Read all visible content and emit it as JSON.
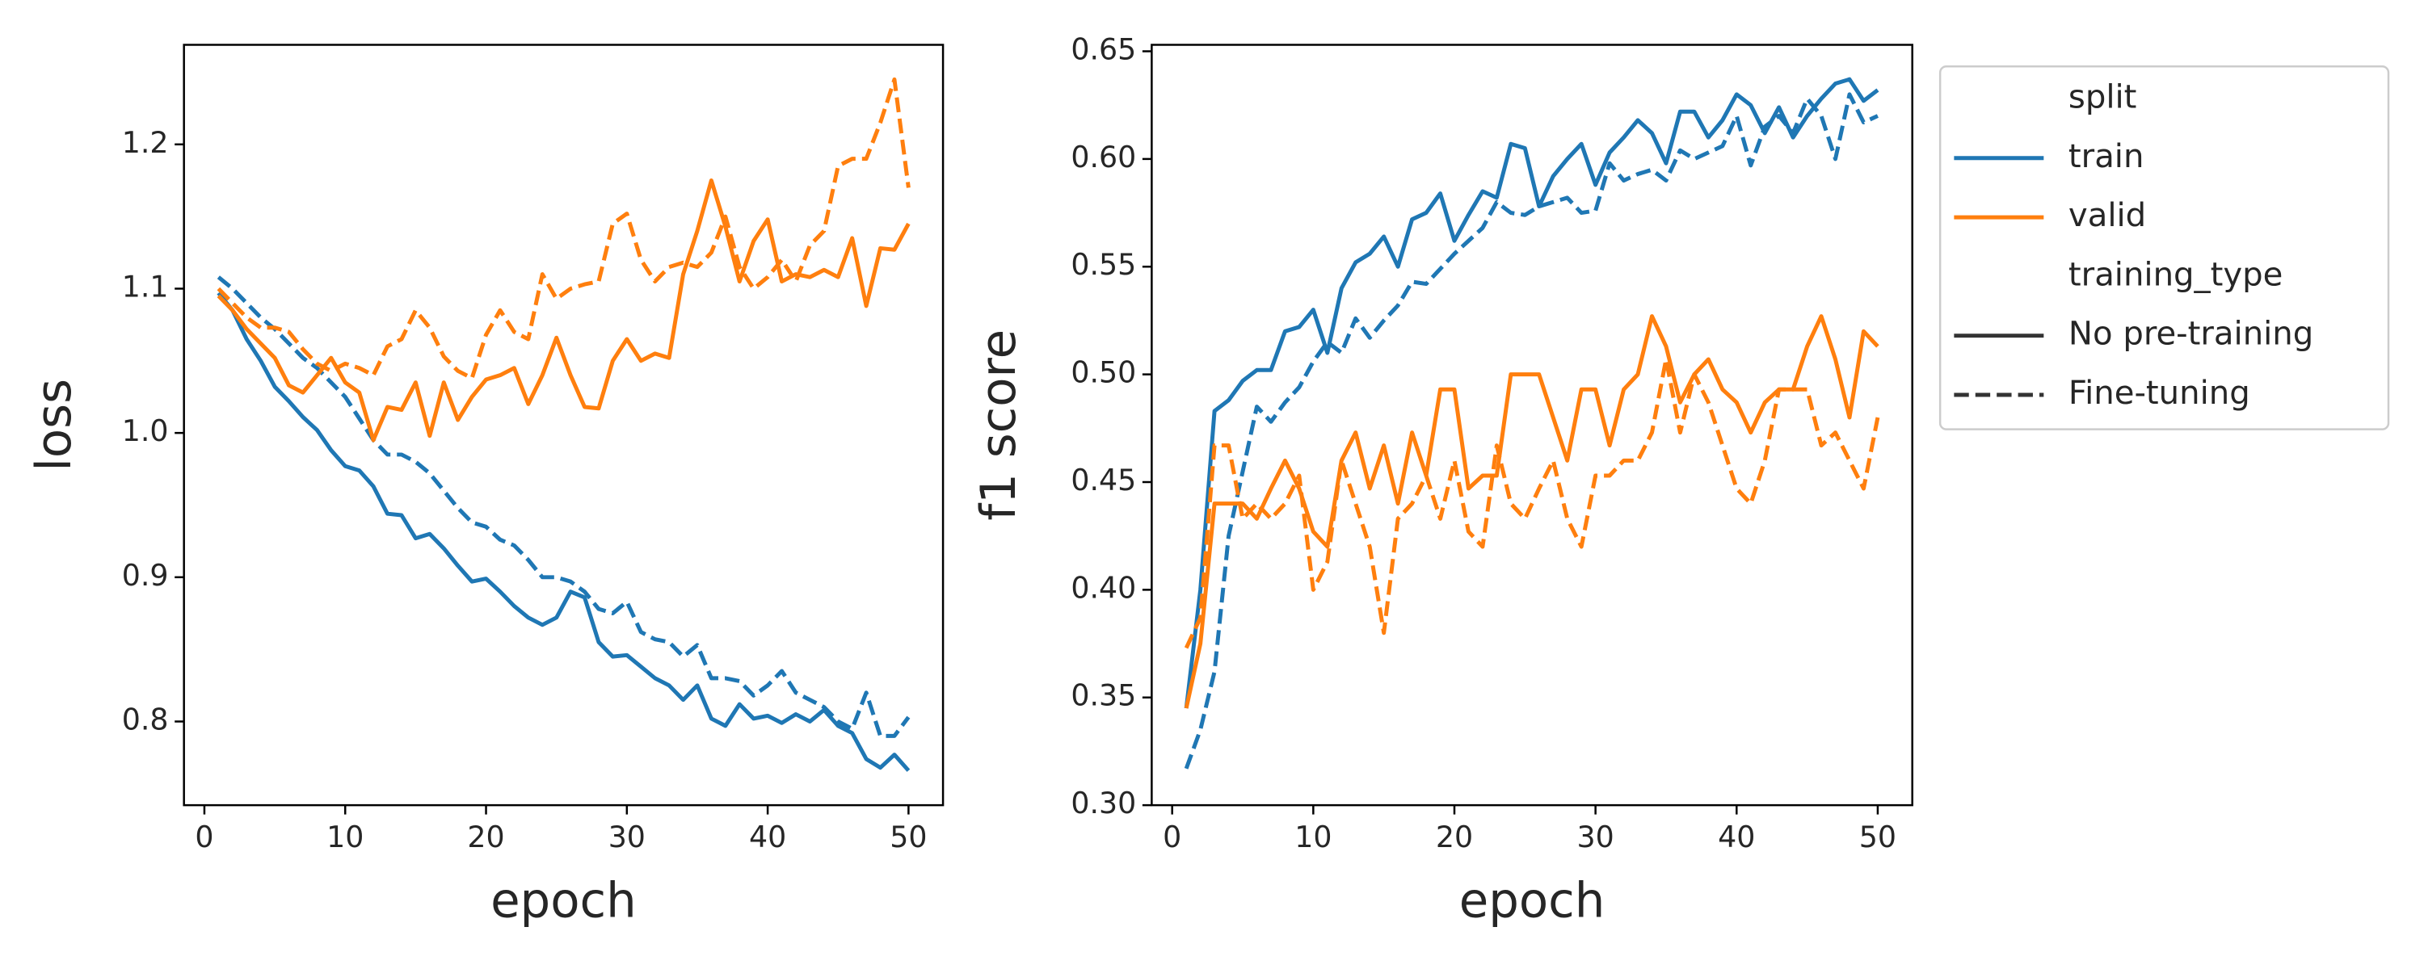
{
  "chart_data": [
    {
      "type": "line",
      "xlabel": "epoch",
      "ylabel": "loss",
      "x": [
        1,
        2,
        3,
        4,
        5,
        6,
        7,
        8,
        9,
        10,
        11,
        12,
        13,
        14,
        15,
        16,
        17,
        18,
        19,
        20,
        21,
        22,
        23,
        24,
        25,
        26,
        27,
        28,
        29,
        30,
        31,
        32,
        33,
        34,
        35,
        36,
        37,
        38,
        39,
        40,
        41,
        42,
        43,
        44,
        45,
        46,
        47,
        48,
        49,
        50
      ],
      "xlim": [
        -1.45,
        52.45
      ],
      "xticks": [
        0,
        10,
        20,
        30,
        40,
        50
      ],
      "ylim": [
        0.742,
        1.269
      ],
      "yticks": [
        0.8,
        0.9,
        {
          "value": 1.0,
          "label": "1.0"
        },
        1.1,
        1.2
      ],
      "series": [
        {
          "split": "train",
          "training_type": "No pre-training",
          "color": "#1f77b4",
          "dashed": false,
          "values": [
            1.097,
            1.085,
            1.065,
            1.05,
            1.032,
            1.022,
            1.011,
            1.002,
            0.988,
            0.977,
            0.974,
            0.963,
            0.944,
            0.943,
            0.927,
            0.93,
            0.92,
            0.908,
            0.897,
            0.899,
            0.89,
            0.88,
            0.872,
            0.867,
            0.872,
            0.89,
            0.886,
            0.855,
            0.845,
            0.846,
            0.838,
            0.83,
            0.825,
            0.815,
            0.825,
            0.802,
            0.797,
            0.812,
            0.802,
            0.804,
            0.799,
            0.805,
            0.8,
            0.808,
            0.797,
            0.792,
            0.774,
            0.768,
            0.777,
            0.766
          ]
        },
        {
          "split": "train",
          "training_type": "Fine-tuning",
          "color": "#1f77b4",
          "dashed": true,
          "values": [
            1.108,
            1.1,
            1.09,
            1.08,
            1.072,
            1.062,
            1.052,
            1.045,
            1.035,
            1.025,
            1.01,
            0.995,
            0.985,
            0.985,
            0.98,
            0.972,
            0.96,
            0.948,
            0.938,
            0.935,
            0.926,
            0.922,
            0.912,
            0.9,
            0.9,
            0.897,
            0.89,
            0.878,
            0.875,
            0.883,
            0.862,
            0.857,
            0.855,
            0.845,
            0.853,
            0.83,
            0.83,
            0.828,
            0.818,
            0.825,
            0.835,
            0.82,
            0.815,
            0.81,
            0.8,
            0.795,
            0.82,
            0.79,
            0.79,
            0.803
          ]
        },
        {
          "split": "valid",
          "training_type": "No pre-training",
          "color": "#ff7f0e",
          "dashed": false,
          "values": [
            1.095,
            1.085,
            1.072,
            1.062,
            1.052,
            1.033,
            1.028,
            1.04,
            1.052,
            1.035,
            1.028,
            0.995,
            1.018,
            1.016,
            1.035,
            0.998,
            1.035,
            1.009,
            1.025,
            1.037,
            1.04,
            1.045,
            1.02,
            1.04,
            1.066,
            1.04,
            1.018,
            1.017,
            1.05,
            1.065,
            1.05,
            1.055,
            1.052,
            1.11,
            1.14,
            1.175,
            1.143,
            1.105,
            1.133,
            1.148,
            1.105,
            1.11,
            1.108,
            1.113,
            1.108,
            1.135,
            1.088,
            1.128,
            1.127,
            1.145
          ]
        },
        {
          "split": "valid",
          "training_type": "Fine-tuning",
          "color": "#ff7f0e",
          "dashed": true,
          "values": [
            1.1,
            1.09,
            1.08,
            1.073,
            1.073,
            1.07,
            1.058,
            1.048,
            1.043,
            1.048,
            1.045,
            1.04,
            1.06,
            1.065,
            1.085,
            1.073,
            1.053,
            1.043,
            1.038,
            1.068,
            1.085,
            1.07,
            1.065,
            1.11,
            1.093,
            1.1,
            1.103,
            1.105,
            1.145,
            1.152,
            1.12,
            1.105,
            1.115,
            1.118,
            1.115,
            1.125,
            1.15,
            1.115,
            1.1,
            1.108,
            1.12,
            1.105,
            1.13,
            1.14,
            1.185,
            1.19,
            1.19,
            1.215,
            1.245,
            1.17
          ]
        }
      ]
    },
    {
      "type": "line",
      "xlabel": "epoch",
      "ylabel": "f1 score",
      "x": [
        1,
        2,
        3,
        4,
        5,
        6,
        7,
        8,
        9,
        10,
        11,
        12,
        13,
        14,
        15,
        16,
        17,
        18,
        19,
        20,
        21,
        22,
        23,
        24,
        25,
        26,
        27,
        28,
        29,
        30,
        31,
        32,
        33,
        34,
        35,
        36,
        37,
        38,
        39,
        40,
        41,
        42,
        43,
        44,
        45,
        46,
        47,
        48,
        49,
        50
      ],
      "xlim": [
        -1.45,
        52.45
      ],
      "xticks": [
        0,
        10,
        20,
        30,
        40,
        50
      ],
      "ylim": [
        0.3,
        0.653
      ],
      "yticks": [
        {
          "value": 0.3,
          "label": "0.30"
        },
        0.35,
        {
          "value": 0.4,
          "label": "0.40"
        },
        0.45,
        {
          "value": 0.5,
          "label": "0.50"
        },
        0.55,
        {
          "value": 0.6,
          "label": "0.60"
        },
        0.65
      ],
      "series": [
        {
          "split": "train",
          "training_type": "No pre-training",
          "color": "#1f77b4",
          "dashed": false,
          "values": [
            0.345,
            0.4,
            0.483,
            0.488,
            0.497,
            0.502,
            0.502,
            0.52,
            0.522,
            0.53,
            0.51,
            0.54,
            0.552,
            0.556,
            0.564,
            0.55,
            0.572,
            0.575,
            0.584,
            0.562,
            0.574,
            0.585,
            0.582,
            0.607,
            0.605,
            0.578,
            0.592,
            0.6,
            0.607,
            0.588,
            0.603,
            0.61,
            0.618,
            0.612,
            0.598,
            0.622,
            0.622,
            0.61,
            0.618,
            0.63,
            0.625,
            0.612,
            0.624,
            0.61,
            0.62,
            0.628,
            0.635,
            0.637,
            0.627,
            0.632
          ]
        },
        {
          "split": "train",
          "training_type": "Fine-tuning",
          "color": "#1f77b4",
          "dashed": true,
          "values": [
            0.317,
            0.335,
            0.362,
            0.425,
            0.455,
            0.485,
            0.478,
            0.487,
            0.494,
            0.506,
            0.515,
            0.51,
            0.526,
            0.517,
            0.525,
            0.532,
            0.543,
            0.542,
            0.549,
            0.556,
            0.562,
            0.568,
            0.58,
            0.575,
            0.574,
            0.578,
            0.58,
            0.582,
            0.575,
            0.576,
            0.598,
            0.59,
            0.593,
            0.595,
            0.59,
            0.604,
            0.6,
            0.603,
            0.606,
            0.62,
            0.597,
            0.615,
            0.62,
            0.612,
            0.628,
            0.62,
            0.6,
            0.63,
            0.617,
            0.62
          ]
        },
        {
          "split": "valid",
          "training_type": "No pre-training",
          "color": "#ff7f0e",
          "dashed": false,
          "values": [
            0.345,
            0.375,
            0.44,
            0.44,
            0.44,
            0.433,
            0.447,
            0.46,
            0.447,
            0.427,
            0.42,
            0.46,
            0.473,
            0.447,
            0.467,
            0.44,
            0.473,
            0.453,
            0.493,
            0.493,
            0.447,
            0.453,
            0.453,
            0.5,
            0.5,
            0.5,
            0.48,
            0.46,
            0.493,
            0.493,
            0.467,
            0.493,
            0.5,
            0.527,
            0.513,
            0.487,
            0.5,
            0.507,
            0.493,
            0.487,
            0.473,
            0.487,
            0.493,
            0.493,
            0.513,
            0.527,
            0.507,
            0.48,
            0.52,
            0.513
          ]
        },
        {
          "split": "valid",
          "training_type": "Fine-tuning",
          "color": "#ff7f0e",
          "dashed": true,
          "values": [
            0.373,
            0.387,
            0.467,
            0.467,
            0.433,
            0.44,
            0.433,
            0.44,
            0.453,
            0.4,
            0.413,
            0.46,
            0.44,
            0.42,
            0.38,
            0.433,
            0.44,
            0.453,
            0.433,
            0.46,
            0.427,
            0.42,
            0.467,
            0.44,
            0.433,
            0.447,
            0.46,
            0.433,
            0.42,
            0.453,
            0.453,
            0.46,
            0.46,
            0.473,
            0.507,
            0.473,
            0.5,
            0.487,
            0.467,
            0.447,
            0.44,
            0.46,
            0.493,
            0.493,
            0.493,
            0.467,
            0.473,
            0.46,
            0.447,
            0.48
          ]
        }
      ],
      "legend": [
        {
          "title": "split",
          "entries": [
            {
              "label": "train",
              "color": "#1f77b4",
              "dashed": false
            },
            {
              "label": "valid",
              "color": "#ff7f0e",
              "dashed": false
            }
          ]
        },
        {
          "title": "training_type",
          "entries": [
            {
              "label": "No pre-training",
              "color": "#333333",
              "dashed": false
            },
            {
              "label": "Fine-tuning",
              "color": "#333333",
              "dashed": true
            }
          ]
        }
      ]
    }
  ]
}
